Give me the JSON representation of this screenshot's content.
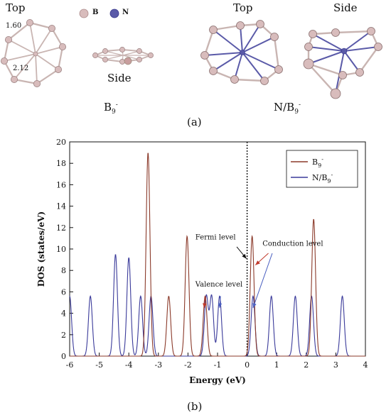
{
  "panel_a": {
    "label": "(a)",
    "top_left_title": "Top",
    "side_left_title": "Side",
    "b9_label_main": "B",
    "b9_label_sub": "9",
    "b9_label_sup": "-",
    "bond_label_1": "1.60",
    "bond_label_2": "2.12",
    "legend_b": "B",
    "legend_n": "N",
    "top_right_title": "Top",
    "side_right_title": "Side",
    "nb9_label_main": "N/B",
    "nb9_label_sub": "9",
    "nb9_label_sup": "-",
    "colors": {
      "boron": "#d8bcbc",
      "nitrogen": "#5a5aa8",
      "bond": "#c9b5b2"
    }
  },
  "panel_b": {
    "label": "(b)"
  },
  "chart_data": {
    "type": "line",
    "xlabel": "Energy (eV)",
    "ylabel": "DOS (states/eV)",
    "xlim": [
      -6,
      4
    ],
    "ylim": [
      0,
      20
    ],
    "xticks": [
      -6,
      -5,
      -4,
      -3,
      -2,
      -1,
      0,
      1,
      2,
      3,
      4
    ],
    "yticks": [
      0,
      2,
      4,
      6,
      8,
      10,
      12,
      14,
      16,
      18,
      20
    ],
    "grid": false,
    "legend_position": "top-right",
    "fermi_level_x": 0,
    "series": [
      {
        "name": "B9-",
        "legend_main": "B",
        "legend_sub": "9",
        "legend_sup": "-",
        "color": "#8b3a2a",
        "peaks": [
          {
            "x": -3.35,
            "h": 19.0
          },
          {
            "x": -2.65,
            "h": 5.6
          },
          {
            "x": -2.03,
            "h": 11.2
          },
          {
            "x": -1.42,
            "h": 5.6
          },
          {
            "x": 0.17,
            "h": 11.2
          },
          {
            "x": 2.25,
            "h": 12.8
          }
        ]
      },
      {
        "name": "N/B9-",
        "legend_main": "N/B",
        "legend_sub": "9",
        "legend_sup": "-",
        "color": "#3a3a9a",
        "peaks": [
          {
            "x": -6.0,
            "h": 5.6
          },
          {
            "x": -5.3,
            "h": 5.6
          },
          {
            "x": -4.45,
            "h": 9.5
          },
          {
            "x": -4.0,
            "h": 9.2
          },
          {
            "x": -3.6,
            "h": 5.6
          },
          {
            "x": -3.25,
            "h": 5.6
          },
          {
            "x": -1.38,
            "h": 5.6
          },
          {
            "x": -1.2,
            "h": 5.6
          },
          {
            "x": -0.93,
            "h": 5.6
          },
          {
            "x": 0.2,
            "h": 5.6
          },
          {
            "x": 0.82,
            "h": 5.6
          },
          {
            "x": 1.63,
            "h": 5.6
          },
          {
            "x": 2.18,
            "h": 5.6
          },
          {
            "x": 3.22,
            "h": 5.6
          }
        ]
      }
    ],
    "annotations": [
      {
        "text": "Fermi level",
        "arrow_to_x": 0.0,
        "arrow_to_y": 9.1,
        "color": "#111111"
      },
      {
        "text": "Conduction level",
        "arrow_to_x": 0.2,
        "arrow_to_y": 10.8,
        "color": "#c0392b"
      },
      {
        "text": "Valence level",
        "arrow_to_x": -1.42,
        "arrow_to_y": 4.6,
        "color": "#c0392b"
      }
    ]
  }
}
